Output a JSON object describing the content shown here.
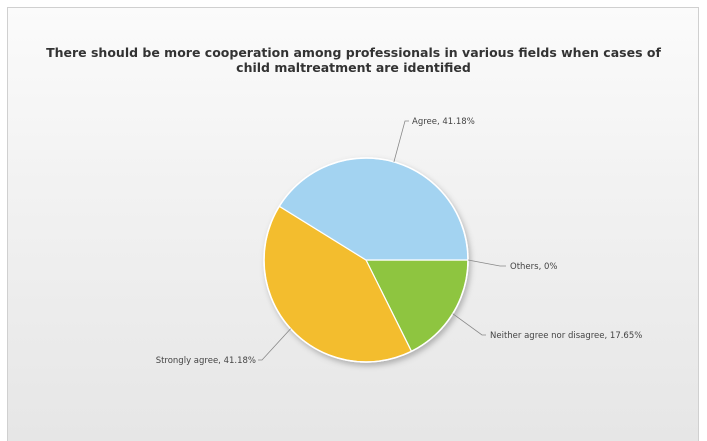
{
  "chart_data": {
    "type": "pie",
    "title_lines": [
      "There should be more cooperation among professionals in various fields when cases of",
      "child maltreatment are identified"
    ],
    "slices": [
      {
        "label": "Others",
        "value": 0,
        "display": "Others, 0%",
        "color": "#8ec53f"
      },
      {
        "label": "Neither agree nor disagree",
        "value": 17.65,
        "display": "Neither agree nor disagree, 17.65%",
        "color": "#8ec53f"
      },
      {
        "label": "Strongly agree",
        "value": 41.18,
        "display": "Strongly agree, 41.18%",
        "color": "#f3bd2e"
      },
      {
        "label": "Agree",
        "value": 41.18,
        "display": "Agree, 41.18%",
        "color": "#a3d3f1"
      }
    ]
  }
}
